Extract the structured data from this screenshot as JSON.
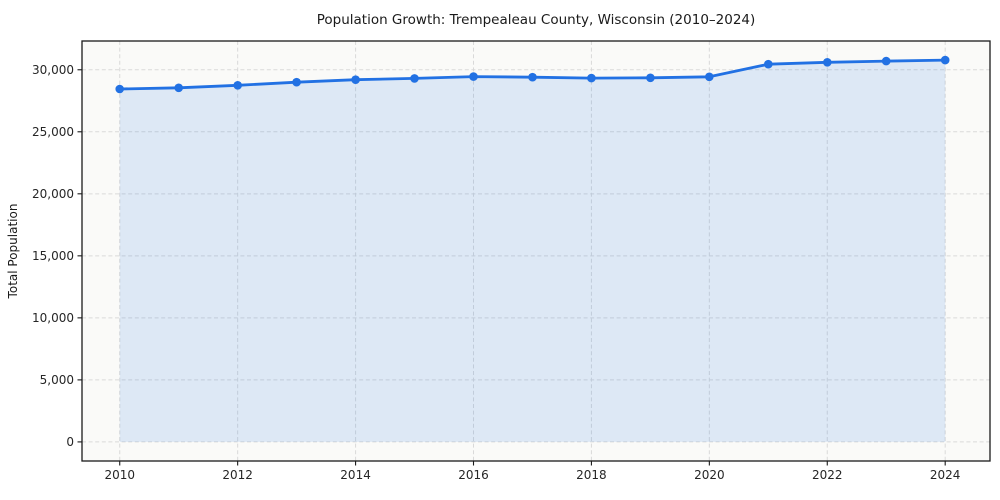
{
  "chart_data": {
    "type": "area",
    "title": "Population Growth: Trempealeau County, Wisconsin (2010–2024)",
    "xlabel": "",
    "ylabel": "Total Population",
    "series_name": "Total Population",
    "x": [
      2010,
      2011,
      2012,
      2013,
      2014,
      2015,
      2016,
      2017,
      2018,
      2019,
      2020,
      2021,
      2022,
      2023,
      2024
    ],
    "values": [
      28450,
      28550,
      28750,
      29000,
      29200,
      29300,
      29450,
      29400,
      29330,
      29350,
      29430,
      30450,
      30600,
      30700,
      30780
    ],
    "xticks": [
      2010,
      2012,
      2014,
      2016,
      2018,
      2020,
      2022,
      2024
    ],
    "xtick_labels": [
      "2010",
      "2012",
      "2014",
      "2016",
      "2018",
      "2020",
      "2022",
      "2024"
    ],
    "yticks": [
      0,
      5000,
      10000,
      15000,
      20000,
      25000,
      30000
    ],
    "ytick_labels": [
      "0",
      "5,000",
      "10,000",
      "15,000",
      "20,000",
      "25,000",
      "30,000"
    ],
    "xlim": [
      2009.36,
      2024.76
    ],
    "ylim": [
      -1539,
      32319
    ],
    "grid": true,
    "grid_style": "dashed",
    "legend": false,
    "colors": {
      "line": "#2271e3",
      "marker": "#2271e3",
      "area_fill": "rgba(34,113,227,0.13)",
      "grid": "#d9d9d9",
      "plot_bg": "#fafaf8",
      "figure_bg": "#ffffff",
      "spine": "#1a1a1a",
      "text": "#262626"
    }
  }
}
